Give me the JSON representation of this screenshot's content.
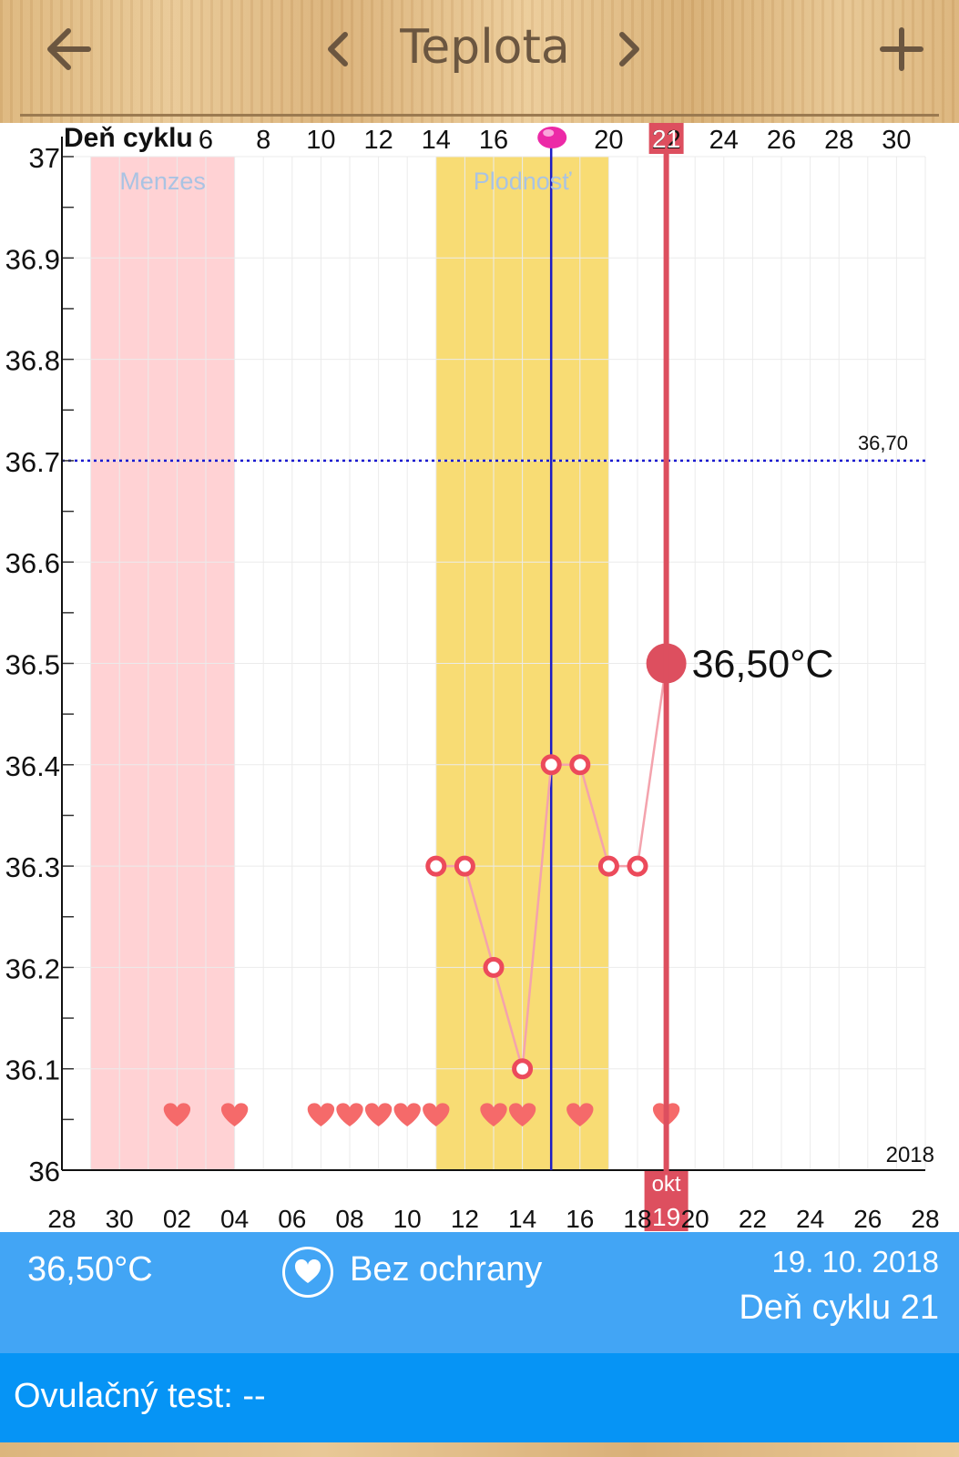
{
  "header": {
    "title": "Teplota",
    "back_icon": "arrow-left-icon",
    "prev_icon": "chevron-left-icon",
    "next_icon": "chevron-right-icon",
    "add_icon": "plus-icon"
  },
  "chart_data": {
    "type": "line",
    "top_axis_label": "Deň cyklu",
    "top_ticks": [
      "6",
      "8",
      "10",
      "12",
      "14",
      "16",
      "20",
      "22",
      "24",
      "26",
      "28",
      "30"
    ],
    "selected_cycle_day": "21",
    "bottom_ticks": [
      "28",
      "30",
      "02",
      "04",
      "06",
      "08",
      "10",
      "12",
      "14",
      "16",
      "18",
      "20",
      "22",
      "24",
      "26",
      "28"
    ],
    "selected_date_day": "19",
    "selected_month": "okt",
    "year": "2018",
    "y_ticks": [
      "37",
      "36.9",
      "36.8",
      "36.7",
      "36.6",
      "36.5",
      "36.4",
      "36.3",
      "36.2",
      "36.1",
      "36"
    ],
    "ylim": [
      36.0,
      37.0
    ],
    "bands": [
      {
        "label": "Menzes",
        "from_day": 1,
        "to_day": 6,
        "color": "#ffd2d4"
      },
      {
        "label": "Plodnosť",
        "from_day": 13,
        "to_day": 19,
        "color": "#f8dc74"
      }
    ],
    "coverline": {
      "value": 36.7,
      "label": "36,70"
    },
    "ovulation_day": 17,
    "series": [
      {
        "points": [
          [
            13,
            36.3
          ],
          [
            14,
            36.3
          ],
          [
            15,
            36.2
          ],
          [
            16,
            36.1
          ],
          [
            17,
            36.4
          ],
          [
            18,
            36.4
          ],
          [
            19,
            36.3
          ],
          [
            20,
            36.3
          ],
          [
            21,
            36.5
          ]
        ]
      }
    ],
    "intercourse_days": [
      4,
      6,
      9,
      10,
      11,
      12,
      13,
      15,
      16,
      18,
      21
    ],
    "selected_point": {
      "day": 21,
      "value": 36.5,
      "label": "36,50°C"
    }
  },
  "info": {
    "temperature": "36,50°C",
    "protection": "Bez ochrany",
    "protection_icon": "heart-icon",
    "date": "19. 10. 2018",
    "cycle_day": "Deň cyklu 21"
  },
  "ovulation_test": {
    "label": "Ovulačný test: --"
  }
}
